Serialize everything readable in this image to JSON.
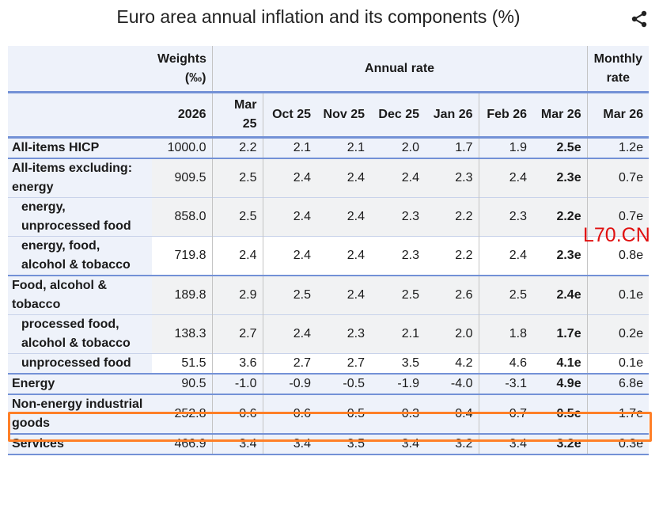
{
  "title": "Euro area annual inflation and its components (%)",
  "share_icon": "share-icon",
  "watermark": "L70.CN",
  "highlight_color": "#ff7f27",
  "chart_data": {
    "type": "table",
    "group_headers": {
      "weights": "Weights (‰)",
      "annual": "Annual rate",
      "monthly": "Monthly rate"
    },
    "columns": [
      "2026",
      "Mar 25",
      "Oct 25",
      "Nov 25",
      "Dec 25",
      "Jan 26",
      "Feb 26",
      "Mar 26",
      "Mar 26"
    ],
    "rows": [
      {
        "label": "All-items HICP",
        "level": 0,
        "values": [
          "1000.0",
          "2.2",
          "2.1",
          "2.1",
          "2.0",
          "1.7",
          "1.9",
          "2.5e",
          "1.2e"
        ]
      },
      {
        "label": "All-items excluding: energy",
        "level": 0,
        "values": [
          "909.5",
          "2.5",
          "2.4",
          "2.4",
          "2.4",
          "2.3",
          "2.4",
          "2.3e",
          "0.7e"
        ]
      },
      {
        "label": "energy, unprocessed food",
        "level": 1,
        "values": [
          "858.0",
          "2.5",
          "2.4",
          "2.4",
          "2.3",
          "2.2",
          "2.3",
          "2.2e",
          "0.7e"
        ]
      },
      {
        "label": "energy, food, alcohol & tobacco",
        "level": 1,
        "values": [
          "719.8",
          "2.4",
          "2.4",
          "2.4",
          "2.3",
          "2.2",
          "2.4",
          "2.3e",
          "0.8e"
        ]
      },
      {
        "label": "Food, alcohol & tobacco",
        "level": 0,
        "values": [
          "189.8",
          "2.9",
          "2.5",
          "2.4",
          "2.5",
          "2.6",
          "2.5",
          "2.4e",
          "0.1e"
        ]
      },
      {
        "label": "processed food, alcohol & tobacco",
        "level": 1,
        "values": [
          "138.3",
          "2.7",
          "2.4",
          "2.3",
          "2.1",
          "2.0",
          "1.8",
          "1.7e",
          "0.2e"
        ]
      },
      {
        "label": "unprocessed food",
        "level": 1,
        "values": [
          "51.5",
          "3.6",
          "2.7",
          "2.7",
          "3.5",
          "4.2",
          "4.6",
          "4.1e",
          "0.1e"
        ]
      },
      {
        "label": "Energy",
        "level": 0,
        "highlighted": true,
        "values": [
          "90.5",
          "-1.0",
          "-0.9",
          "-0.5",
          "-1.9",
          "-4.0",
          "-3.1",
          "4.9e",
          "6.8e"
        ]
      },
      {
        "label": "Non-energy industrial goods",
        "level": 0,
        "values": [
          "252.8",
          "0.6",
          "0.6",
          "0.5",
          "0.3",
          "0.4",
          "0.7",
          "0.5e",
          "1.7e"
        ]
      },
      {
        "label": "Services",
        "level": 0,
        "values": [
          "466.9",
          "3.4",
          "3.4",
          "3.5",
          "3.4",
          "3.2",
          "3.4",
          "3.2e",
          "0.3e"
        ]
      }
    ]
  }
}
